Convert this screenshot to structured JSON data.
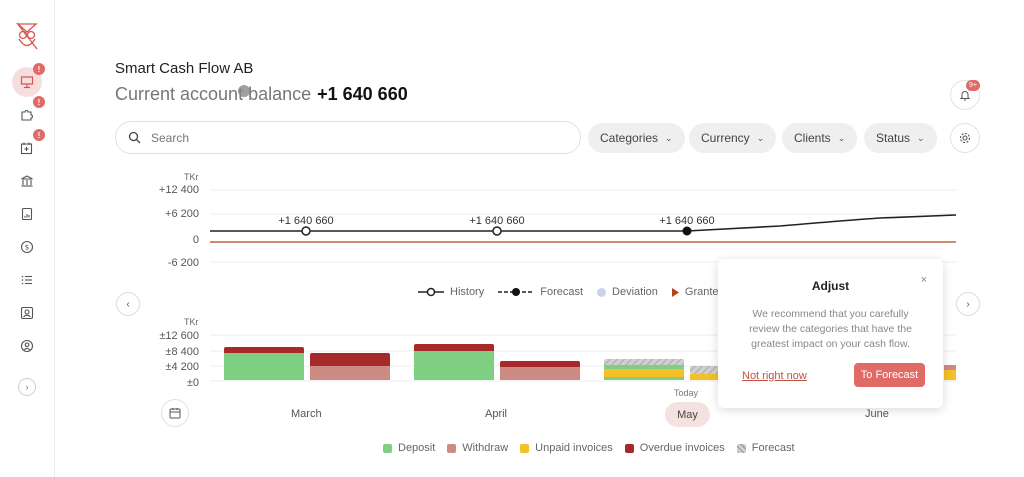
{
  "header": {
    "company": "Smart Cash Flow AB",
    "balance_label": "Current account balance",
    "balance_value": "+1 640 660",
    "notif_count": "9+"
  },
  "sidebar": {
    "items": [
      {
        "icon": "presentation-icon",
        "badge": "!"
      },
      {
        "icon": "puzzle-icon",
        "badge": "!"
      },
      {
        "icon": "calendar-add-icon",
        "badge": "!"
      },
      {
        "icon": "bank-icon"
      },
      {
        "icon": "document-icon"
      },
      {
        "icon": "dollar-circle-icon"
      },
      {
        "icon": "list-icon"
      },
      {
        "icon": "contact-icon"
      },
      {
        "icon": "user-circle-icon"
      }
    ],
    "expand": "›"
  },
  "filters": {
    "search_placeholder": "Search",
    "categories": "Categories",
    "currency": "Currency",
    "clients": "Clients",
    "status": "Status"
  },
  "chart_data": [
    {
      "type": "line",
      "unit": "TKr",
      "y_ticks": [
        "+12 400",
        "+6 200",
        "0",
        "-6 200"
      ],
      "series": [
        {
          "name": "History",
          "points": [
            {
              "x": "March",
              "y": 1640660
            },
            {
              "x": "April",
              "y": 1640660
            },
            {
              "x": "May",
              "y": 1640660
            }
          ]
        },
        {
          "name": "Forecast",
          "points": [
            {
              "x": "May",
              "y": 1640660
            },
            {
              "x": "June",
              "y": 2900000
            }
          ]
        }
      ],
      "labels": [
        "+1 640 660",
        "+1 640 660",
        "+1 640 660"
      ],
      "legend": [
        "History",
        "Forecast",
        "Deviation",
        "Granted credit"
      ]
    },
    {
      "type": "bar",
      "unit": "TKr",
      "y_ticks": [
        "±12 600",
        "±8 400",
        "±4 200",
        "±0"
      ],
      "categories": [
        "March",
        "April",
        "May",
        "June"
      ],
      "legend": [
        "Deposit",
        "Withdraw",
        "Unpaid invoices",
        "Overdue invoices",
        "Forecast"
      ]
    }
  ],
  "chart": {
    "months": [
      "March",
      "April",
      "May",
      "June"
    ],
    "today": "Today",
    "legend_line": [
      "History",
      "Forecast",
      "Deviation",
      "Granted credit"
    ],
    "legend_bar": [
      "Deposit",
      "Withdraw",
      "Unpaid invoices",
      "Overdue invoices",
      "Forecast"
    ],
    "y_ticks_top": [
      "+12 400",
      "+6 200",
      "0",
      "-6 200"
    ],
    "y_ticks_bottom": [
      "±12 600",
      "±8 400",
      "±4 200",
      "±0"
    ],
    "unit": "TKr",
    "point_labels": [
      "+1 640 660",
      "+1 640 660",
      "+1 640 660"
    ]
  },
  "colors": {
    "deposit": "#7fcf83",
    "withdraw": "#cc8c84",
    "unpaid": "#f4c028",
    "overdue": "#a8292b",
    "forecast": "#c9c9c9",
    "deviation": "#c9d3ea",
    "granted": "#b4431e",
    "accent": "#e06a66"
  },
  "popup": {
    "title": "Adjust",
    "close": "×",
    "body": "We recommend that you carefully review the categories that have the greatest impact on your cash flow.",
    "dismiss": "Not right now",
    "cta": "To Forecast"
  }
}
